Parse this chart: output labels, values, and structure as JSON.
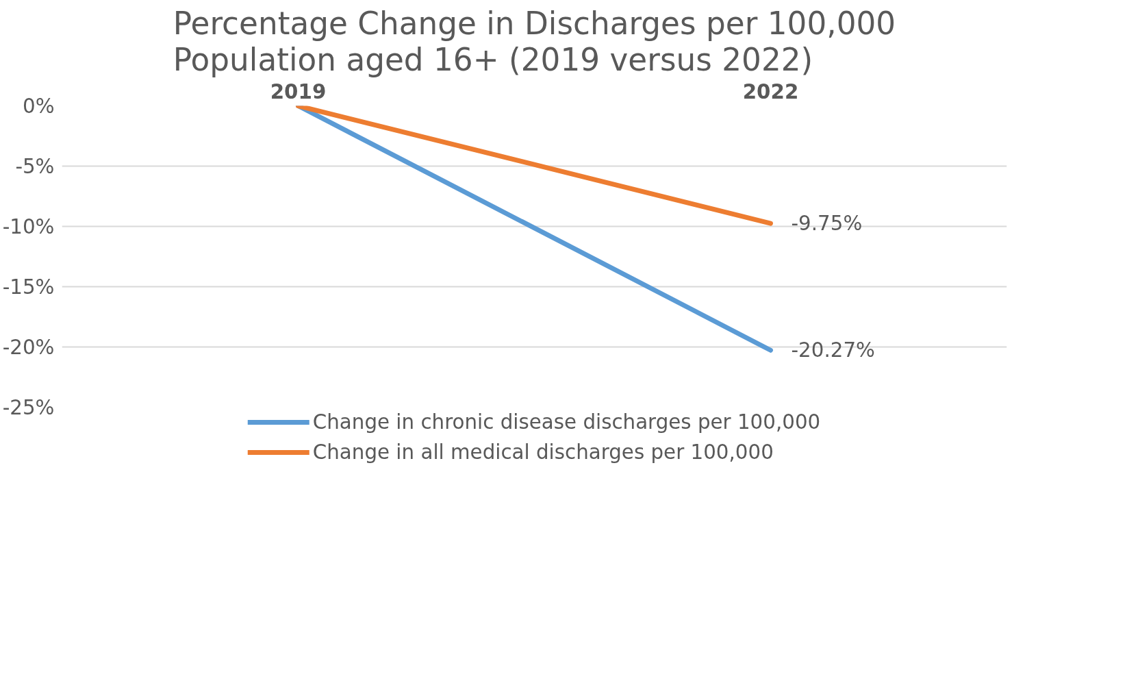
{
  "chart_data": {
    "type": "line",
    "title": "Percentage Change in Discharges per 100,000\nPopulation aged 16+ (2019 versus 2022)",
    "categories": [
      "2019",
      "2022"
    ],
    "series": [
      {
        "name": "Change in chronic disease discharges per 100,000",
        "color": "#5b9bd5",
        "values": [
          0,
          -20.27
        ],
        "value_labels": [
          null,
          "-20.27%"
        ]
      },
      {
        "name": "Change in all medical discharges per 100,000",
        "color": "#ed7d31",
        "values": [
          0,
          -9.75
        ],
        "value_labels": [
          null,
          "-9.75%"
        ]
      }
    ],
    "ylim": [
      -25,
      0
    ],
    "yticks": [
      {
        "value": 0,
        "label": "0%"
      },
      {
        "value": -5,
        "label": "-5%"
      },
      {
        "value": -10,
        "label": "-10%"
      },
      {
        "value": -15,
        "label": "-15%"
      },
      {
        "value": -20,
        "label": "-20%"
      },
      {
        "value": -25,
        "label": "-25%"
      }
    ],
    "grid": "y",
    "legend": "bottom",
    "marker": "none",
    "line_style": "solid"
  }
}
